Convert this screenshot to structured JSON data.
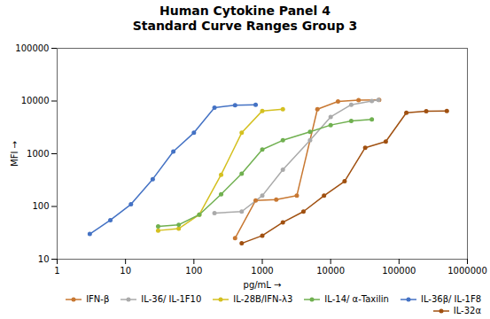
{
  "chart_data": {
    "type": "line",
    "title": "Human Cytokine Panel 4\nStandard Curve Ranges Group 3",
    "xlabel": "pg/mL",
    "ylabel": "MFI",
    "log": true,
    "grid": false,
    "legend": "lower right",
    "marker": "circle",
    "line_style": "solid",
    "xlim": [
      1,
      1000000
    ],
    "ylim": [
      10,
      100000
    ],
    "xticks": [
      1,
      10,
      100,
      1000,
      10000,
      100000,
      1000000
    ],
    "yticks": [
      10,
      100,
      1000,
      10000,
      100000
    ],
    "series": [
      {
        "name": "IFN-β",
        "color": "#c87832",
        "x": [
          400,
          800,
          1600,
          3200,
          6400,
          12800,
          25600,
          51200
        ],
        "values": [
          25,
          130,
          135,
          160,
          7000,
          9800,
          10400,
          10500
        ]
      },
      {
        "name": "IL-36/ IL-1F10",
        "color": "#aaaaaa",
        "x": [
          200,
          500,
          1000,
          2000,
          5000,
          10000,
          20000,
          40000,
          50000
        ],
        "values": [
          75,
          80,
          160,
          500,
          1800,
          5000,
          8500,
          10000,
          10500
        ]
      },
      {
        "name": "IL-28B/IFN-λ3",
        "color": "#d4c020",
        "x": [
          30,
          60,
          120,
          250,
          500,
          1000,
          2000
        ],
        "values": [
          35,
          38,
          70,
          400,
          2500,
          6500,
          7000
        ]
      },
      {
        "name": "IL-14/ α-Taxilin",
        "color": "#70b050",
        "x": [
          30,
          60,
          120,
          250,
          500,
          1000,
          2000,
          5000,
          10000,
          20000,
          40000
        ],
        "values": [
          42,
          45,
          70,
          170,
          420,
          1200,
          1800,
          2600,
          3500,
          4200,
          4500
        ]
      },
      {
        "name": "IL-36β/ IL-1F8",
        "color": "#4472c4",
        "x": [
          3,
          6,
          12,
          25,
          50,
          100,
          200,
          400,
          800
        ],
        "values": [
          30,
          55,
          110,
          330,
          1100,
          2500,
          7500,
          8300,
          8500
        ]
      },
      {
        "name": "IL-32α",
        "color": "#a05010",
        "x": [
          500,
          1000,
          2000,
          4000,
          8000,
          16000,
          32000,
          64000,
          128000,
          250000,
          500000
        ],
        "values": [
          20,
          28,
          50,
          80,
          160,
          300,
          1300,
          1700,
          6000,
          6400,
          6500
        ]
      }
    ]
  }
}
